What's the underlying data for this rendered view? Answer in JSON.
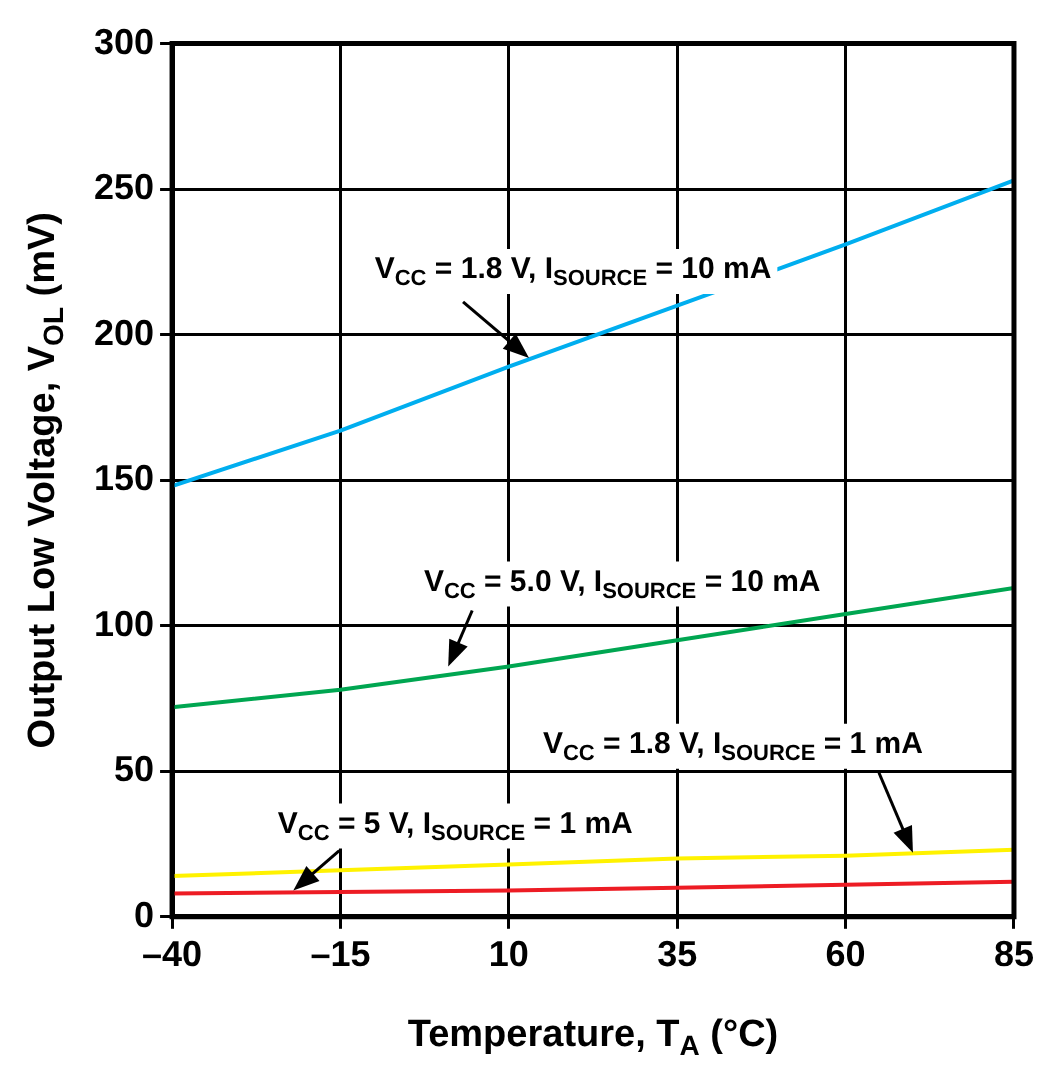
{
  "chart_data": {
    "type": "line",
    "xlabel": "Temperature, T$_{A}$ (°C)",
    "ylabel": "Output Low Voltage, V$_{OL}$ (mV)",
    "x": [
      -40,
      -15,
      10,
      35,
      60,
      85
    ],
    "series": [
      {
        "color": "#00aeef",
        "values": [
          148,
          167,
          189,
          210,
          231,
          253
        ]
      },
      {
        "color": "#00a651",
        "values": [
          72,
          78,
          86,
          95,
          104,
          113
        ]
      },
      {
        "color": "#fff200",
        "values": [
          14,
          16,
          18,
          20,
          21,
          23
        ]
      },
      {
        "color": "#ed1c24",
        "values": [
          8,
          8.5,
          9,
          10,
          11,
          12
        ]
      }
    ],
    "xlim": [
      -40,
      85
    ],
    "xticks": [
      {
        "value": -40,
        "label": "–40"
      },
      {
        "value": -15,
        "label": "–15"
      },
      10,
      35,
      60,
      85
    ],
    "ylim": [
      0,
      300
    ],
    "yticks": [
      0,
      50,
      100,
      150,
      200,
      250,
      300
    ],
    "grid": true,
    "legend": false,
    "marker": "none",
    "line_style": "solid",
    "annotations": [
      {
        "text": "V$_{CC}$ = 1.8 V, I$_{SOURCE}$ = 10 mA",
        "x": 13,
        "y": 192
      },
      {
        "text": "V$_{CC}$ = 5.0 V, I$_{SOURCE}$ = 10 mA",
        "x": 1,
        "y": 86
      },
      {
        "text": "V$_{CC}$ = 1.8 V, I$_{SOURCE}$ = 1 mA",
        "x": 70,
        "y": 22
      },
      {
        "text": "V$_{CC}$ = 5 V, I$_{SOURCE}$ = 1 mA",
        "x": -22,
        "y": 9
      }
    ]
  }
}
